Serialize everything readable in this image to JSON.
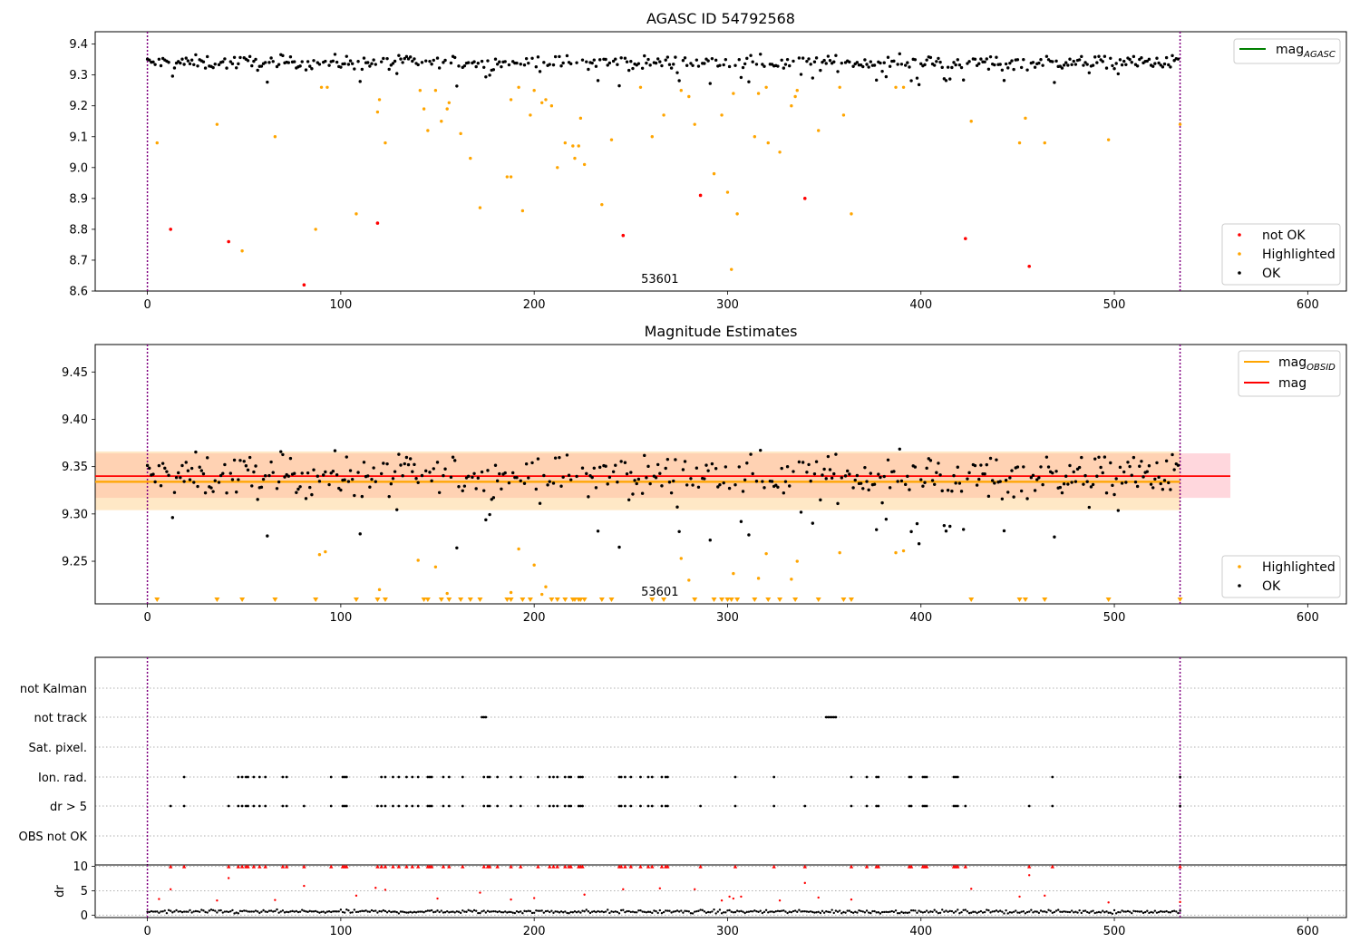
{
  "chart_data": [
    {
      "type": "scatter",
      "title": "AGASC ID 54792568",
      "xlim": [
        -27,
        620
      ],
      "ylim": [
        8.6,
        9.44
      ],
      "xticks": [
        0,
        100,
        200,
        300,
        400,
        500,
        600
      ],
      "yticks": [
        8.6,
        8.7,
        8.8,
        8.9,
        9.0,
        9.1,
        9.2,
        9.3,
        9.4
      ],
      "ytick_labels": [
        "8.6",
        "8.7",
        "8.8",
        "8.9",
        "9.0",
        "9.1",
        "9.2",
        "9.3",
        "9.4"
      ],
      "vlines": [
        0,
        534
      ],
      "annotation": "53601",
      "legend_upper": [
        {
          "name": "magAGASC",
          "label_main": "mag",
          "label_sub": "AGASC",
          "color": "#008000"
        }
      ],
      "legend_lower": [
        {
          "name": "not OK",
          "color": "#ff0000"
        },
        {
          "name": "Highlighted",
          "color": "#ffa500"
        },
        {
          "name": "OK",
          "color": "#000000"
        }
      ],
      "ok_band": {
        "center": 9.34,
        "spread": 0.022
      },
      "series": [
        {
          "name": "not OK",
          "color": "#ff0000",
          "points": [
            [
              12,
              8.8
            ],
            [
              42,
              8.76
            ],
            [
              81,
              8.62
            ],
            [
              119,
              8.82
            ],
            [
              246,
              8.78
            ],
            [
              286,
              8.91
            ],
            [
              340,
              8.9
            ],
            [
              423,
              8.77
            ],
            [
              456,
              8.68
            ]
          ]
        },
        {
          "name": "Highlighted",
          "color": "#ffa500",
          "points": [
            [
              5,
              9.08
            ],
            [
              36,
              9.14
            ],
            [
              49,
              8.73
            ],
            [
              66,
              9.1
            ],
            [
              87,
              8.8
            ],
            [
              90,
              9.26
            ],
            [
              93,
              9.26
            ],
            [
              108,
              8.85
            ],
            [
              119,
              9.18
            ],
            [
              120,
              9.22
            ],
            [
              123,
              9.08
            ],
            [
              141,
              9.25
            ],
            [
              143,
              9.19
            ],
            [
              145,
              9.12
            ],
            [
              149,
              9.25
            ],
            [
              152,
              9.15
            ],
            [
              155,
              9.19
            ],
            [
              156,
              9.21
            ],
            [
              162,
              9.11
            ],
            [
              167,
              9.03
            ],
            [
              172,
              8.87
            ],
            [
              186,
              8.97
            ],
            [
              188,
              8.97
            ],
            [
              188,
              9.22
            ],
            [
              192,
              9.26
            ],
            [
              194,
              8.86
            ],
            [
              198,
              9.17
            ],
            [
              200,
              9.25
            ],
            [
              204,
              9.21
            ],
            [
              206,
              9.22
            ],
            [
              209,
              9.2
            ],
            [
              212,
              9.0
            ],
            [
              216,
              9.08
            ],
            [
              220,
              9.07
            ],
            [
              221,
              9.03
            ],
            [
              223,
              9.07
            ],
            [
              224,
              9.16
            ],
            [
              226,
              9.01
            ],
            [
              235,
              8.88
            ],
            [
              240,
              9.09
            ],
            [
              255,
              9.26
            ],
            [
              261,
              9.1
            ],
            [
              267,
              9.17
            ],
            [
              276,
              9.25
            ],
            [
              280,
              9.23
            ],
            [
              283,
              9.14
            ],
            [
              293,
              8.98
            ],
            [
              297,
              9.17
            ],
            [
              300,
              8.92
            ],
            [
              302,
              8.67
            ],
            [
              303,
              9.24
            ],
            [
              305,
              8.85
            ],
            [
              314,
              9.1
            ],
            [
              316,
              9.24
            ],
            [
              320,
              9.26
            ],
            [
              321,
              9.08
            ],
            [
              327,
              9.05
            ],
            [
              333,
              9.2
            ],
            [
              335,
              9.23
            ],
            [
              336,
              9.25
            ],
            [
              347,
              9.12
            ],
            [
              358,
              9.26
            ],
            [
              360,
              9.17
            ],
            [
              364,
              8.85
            ],
            [
              387,
              9.26
            ],
            [
              391,
              9.26
            ],
            [
              426,
              9.15
            ],
            [
              451,
              9.08
            ],
            [
              454,
              9.16
            ],
            [
              464,
              9.08
            ],
            [
              497,
              9.09
            ],
            [
              534,
              9.14
            ]
          ]
        },
        {
          "name": "OK",
          "color": "#000000",
          "points_note": "dense stream near band center"
        }
      ]
    },
    {
      "type": "scatter",
      "title": "Magnitude Estimates",
      "xlim": [
        -27,
        620
      ],
      "ylim": [
        9.205,
        9.479
      ],
      "xticks": [
        0,
        100,
        200,
        300,
        400,
        500,
        600
      ],
      "yticks": [
        9.25,
        9.3,
        9.35,
        9.4,
        9.45
      ],
      "ytick_labels": [
        "9.25",
        "9.30",
        "9.35",
        "9.40",
        "9.45"
      ],
      "vlines": [
        0,
        534
      ],
      "annotation": "53601",
      "mag_line": {
        "value": 9.34,
        "x_end": 560,
        "band_low": 9.317,
        "band_high": 9.364,
        "color": "#ff0000"
      },
      "mag_obsid_line": {
        "value": 9.334,
        "x_end": 534,
        "band_low": 9.304,
        "band_high": 9.366,
        "color": "#ffa500"
      },
      "legend_upper": [
        {
          "name": "magOBSID",
          "label_main": "mag",
          "label_sub": "OBSID",
          "color": "#ffa500"
        },
        {
          "name": "mag",
          "label_main": "mag",
          "label_sub": "",
          "color": "#ff0000"
        }
      ],
      "legend_lower": [
        {
          "name": "Highlighted",
          "color": "#ffa500"
        },
        {
          "name": "OK",
          "color": "#000000"
        }
      ],
      "highlighted_in_range": [
        [
          89,
          9.257
        ],
        [
          92,
          9.26
        ],
        [
          120,
          9.22
        ],
        [
          140,
          9.251
        ],
        [
          149,
          9.244
        ],
        [
          155,
          9.216
        ],
        [
          188,
          9.217
        ],
        [
          192,
          9.263
        ],
        [
          200,
          9.246
        ],
        [
          204,
          9.215
        ],
        [
          206,
          9.223
        ],
        [
          276,
          9.253
        ],
        [
          280,
          9.23
        ],
        [
          303,
          9.237
        ],
        [
          316,
          9.232
        ],
        [
          320,
          9.258
        ],
        [
          333,
          9.231
        ],
        [
          336,
          9.25
        ],
        [
          358,
          9.259
        ],
        [
          387,
          9.259
        ],
        [
          391,
          9.261
        ]
      ],
      "offscale_low_x": [
        5,
        36,
        49,
        66,
        87,
        108,
        119,
        123,
        143,
        145,
        152,
        156,
        162,
        167,
        172,
        186,
        188,
        194,
        198,
        209,
        212,
        216,
        220,
        221,
        223,
        224,
        226,
        235,
        240,
        261,
        267,
        283,
        293,
        297,
        300,
        302,
        305,
        314,
        321,
        327,
        335,
        347,
        360,
        364,
        426,
        451,
        454,
        464,
        497,
        534
      ]
    },
    {
      "type": "scatter",
      "title": "",
      "xlim": [
        -27,
        620
      ],
      "categories": [
        "not Kalman",
        "not track",
        "Sat. pixel.",
        "Ion. rad.",
        "dr > 5",
        "OBS not OK"
      ],
      "vlines": [
        0,
        534
      ],
      "flags": {
        "not track": [
          173,
          174,
          175,
          351,
          352,
          353,
          354,
          355,
          356
        ],
        "Ion. rad.": [
          19,
          47,
          49,
          51,
          52,
          55,
          58,
          61,
          70,
          72,
          95,
          101,
          102,
          103,
          121,
          123,
          127,
          130,
          134,
          137,
          140,
          145,
          146,
          147,
          153,
          156,
          163,
          174,
          176,
          177,
          181,
          188,
          193,
          202,
          208,
          210,
          212,
          216,
          218,
          219,
          223,
          224,
          225,
          244,
          245,
          247,
          250,
          255,
          259,
          261,
          266,
          268,
          269,
          304,
          324,
          364,
          372,
          377,
          378,
          394,
          395,
          401,
          402,
          403,
          417,
          418,
          419,
          468,
          534
        ],
        "dr > 5": [
          12,
          19,
          42,
          47,
          49,
          51,
          52,
          55,
          58,
          61,
          70,
          72,
          81,
          95,
          101,
          102,
          103,
          119,
          121,
          123,
          127,
          130,
          134,
          137,
          140,
          145,
          146,
          147,
          153,
          156,
          163,
          174,
          176,
          177,
          181,
          188,
          193,
          202,
          208,
          210,
          212,
          216,
          218,
          219,
          223,
          224,
          225,
          244,
          245,
          247,
          250,
          255,
          259,
          261,
          266,
          268,
          269,
          286,
          304,
          324,
          340,
          364,
          372,
          377,
          378,
          394,
          395,
          401,
          402,
          403,
          417,
          418,
          419,
          423,
          456,
          468,
          534
        ]
      }
    },
    {
      "type": "scatter",
      "title": "",
      "xlabel": "",
      "ylabel": "dr",
      "xlim": [
        -27,
        620
      ],
      "ylim": [
        -0.5,
        10.3
      ],
      "xticks": [
        0,
        100,
        200,
        300,
        400,
        500,
        600
      ],
      "yticks": [
        0,
        5,
        10
      ],
      "ytick_labels": [
        "0",
        "5",
        "10"
      ],
      "vlines": [
        0,
        534
      ],
      "capped_at": 10,
      "red_midrange": [
        [
          6,
          3.3
        ],
        [
          12,
          5.3
        ],
        [
          36,
          3.0
        ],
        [
          42,
          7.6
        ],
        [
          66,
          3.1
        ],
        [
          81,
          6.0
        ],
        [
          108,
          4.0
        ],
        [
          118,
          5.6
        ],
        [
          123,
          5.2
        ],
        [
          150,
          3.4
        ],
        [
          172,
          4.6
        ],
        [
          188,
          3.2
        ],
        [
          200,
          3.5
        ],
        [
          226,
          4.2
        ],
        [
          246,
          5.3
        ],
        [
          265,
          5.5
        ],
        [
          283,
          5.3
        ],
        [
          297,
          3.0
        ],
        [
          301,
          3.8
        ],
        [
          303,
          3.4
        ],
        [
          307,
          3.8
        ],
        [
          327,
          3.0
        ],
        [
          340,
          6.6
        ],
        [
          347,
          3.6
        ],
        [
          364,
          3.2
        ],
        [
          426,
          5.4
        ],
        [
          451,
          3.8
        ],
        [
          456,
          8.2
        ],
        [
          464,
          4.0
        ],
        [
          497,
          2.6
        ],
        [
          534,
          2.7
        ]
      ]
    }
  ]
}
